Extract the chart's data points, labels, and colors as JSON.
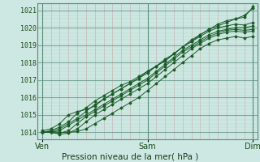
{
  "title": "Pression niveau de la mer( hPa )",
  "bg_color": "#cde8e2",
  "plot_bg_color": "#cde8e2",
  "grid_color_major": "#a8c8c0",
  "grid_color_minor": "#b8d8d0",
  "grid_color_red": "#d4a8a8",
  "line_color": "#1a5c28",
  "x_ticks": [
    0,
    48,
    96
  ],
  "x_tick_labels": [
    "Ven",
    "Sam",
    "Dim"
  ],
  "ylim": [
    1013.6,
    1021.4
  ],
  "y_ticks": [
    1014,
    1015,
    1016,
    1017,
    1018,
    1019,
    1020,
    1021
  ],
  "xlim": [
    -2,
    98
  ],
  "lines": [
    {
      "x": [
        0,
        4,
        8,
        12,
        16,
        20,
        24,
        28,
        32,
        36,
        40,
        44,
        48,
        52,
        56,
        60,
        64,
        68,
        72,
        76,
        80,
        84,
        88,
        92,
        96
      ],
      "y": [
        1014.0,
        1014.1,
        1014.3,
        1014.6,
        1015.1,
        1015.4,
        1015.8,
        1016.1,
        1016.4,
        1016.7,
        1016.9,
        1017.2,
        1017.5,
        1017.8,
        1018.1,
        1018.5,
        1018.9,
        1019.2,
        1019.6,
        1019.9,
        1020.1,
        1020.3,
        1020.5,
        1020.7,
        1021.1
      ]
    },
    {
      "x": [
        0,
        4,
        8,
        12,
        16,
        20,
        24,
        28,
        32,
        36,
        40,
        44,
        48,
        52,
        56,
        60,
        64,
        68,
        72,
        76,
        80,
        84,
        88,
        92,
        96
      ],
      "y": [
        1014.0,
        1014.05,
        1014.2,
        1014.5,
        1014.8,
        1015.2,
        1015.6,
        1015.9,
        1016.2,
        1016.5,
        1016.8,
        1017.1,
        1017.4,
        1017.8,
        1018.2,
        1018.5,
        1018.9,
        1019.2,
        1019.5,
        1019.8,
        1020.0,
        1020.1,
        1020.2,
        1020.15,
        1020.3
      ]
    },
    {
      "x": [
        0,
        4,
        8,
        12,
        16,
        20,
        24,
        28,
        32,
        36,
        40,
        44,
        48,
        52,
        56,
        60,
        64,
        68,
        72,
        76,
        80,
        84,
        88,
        92,
        96
      ],
      "y": [
        1014.0,
        1014.0,
        1014.1,
        1014.4,
        1014.7,
        1015.0,
        1015.3,
        1015.6,
        1015.9,
        1016.2,
        1016.5,
        1016.8,
        1017.1,
        1017.5,
        1017.9,
        1018.3,
        1018.7,
        1019.0,
        1019.3,
        1019.6,
        1019.8,
        1019.9,
        1020.0,
        1020.0,
        1020.1
      ]
    },
    {
      "x": [
        0,
        4,
        8,
        12,
        16,
        20,
        24,
        28,
        32,
        36,
        40,
        44,
        48,
        52,
        56,
        60,
        64,
        68,
        72,
        76,
        80,
        84,
        88,
        92,
        96
      ],
      "y": [
        1014.0,
        1014.0,
        1013.95,
        1014.1,
        1014.5,
        1014.9,
        1015.2,
        1015.5,
        1015.8,
        1016.1,
        1016.4,
        1016.7,
        1017.0,
        1017.4,
        1017.8,
        1018.2,
        1018.6,
        1018.9,
        1019.2,
        1019.5,
        1019.7,
        1019.85,
        1019.9,
        1019.85,
        1019.9
      ]
    },
    {
      "x": [
        0,
        4,
        8,
        12,
        16,
        20,
        24,
        28,
        32,
        36,
        40,
        44,
        48,
        52,
        56,
        60,
        64,
        68,
        72,
        76,
        80,
        84,
        88,
        92,
        96
      ],
      "y": [
        1014.0,
        1014.0,
        1013.9,
        1013.95,
        1014.2,
        1014.6,
        1015.0,
        1015.3,
        1015.6,
        1015.9,
        1016.2,
        1016.5,
        1016.8,
        1017.2,
        1017.6,
        1018.0,
        1018.4,
        1018.8,
        1019.1,
        1019.4,
        1019.6,
        1019.75,
        1019.8,
        1019.75,
        1019.8
      ]
    },
    {
      "x": [
        0,
        4,
        8,
        12,
        16,
        20,
        24,
        28,
        32,
        36,
        40,
        44,
        48,
        52,
        56,
        60,
        64,
        68,
        72,
        76,
        80,
        84,
        88,
        92,
        96
      ],
      "y": [
        1014.0,
        1014.05,
        1014.0,
        1014.0,
        1014.05,
        1014.2,
        1014.5,
        1014.8,
        1015.1,
        1015.4,
        1015.7,
        1016.0,
        1016.4,
        1016.8,
        1017.2,
        1017.6,
        1018.0,
        1018.4,
        1018.8,
        1019.1,
        1019.3,
        1019.4,
        1019.5,
        1019.4,
        1019.5
      ]
    },
    {
      "x": [
        0,
        4,
        8,
        12,
        16,
        20,
        24,
        28,
        32,
        36,
        40,
        44,
        48,
        52,
        56,
        60,
        64,
        68,
        72,
        76,
        80,
        84,
        88,
        92,
        96
      ],
      "y": [
        1014.1,
        1014.2,
        1014.5,
        1015.0,
        1015.2,
        1015.3,
        1015.5,
        1015.9,
        1016.2,
        1016.5,
        1016.8,
        1017.1,
        1017.5,
        1017.8,
        1018.1,
        1018.5,
        1018.9,
        1019.3,
        1019.6,
        1019.9,
        1020.2,
        1020.4,
        1020.5,
        1020.6,
        1021.2
      ]
    }
  ]
}
